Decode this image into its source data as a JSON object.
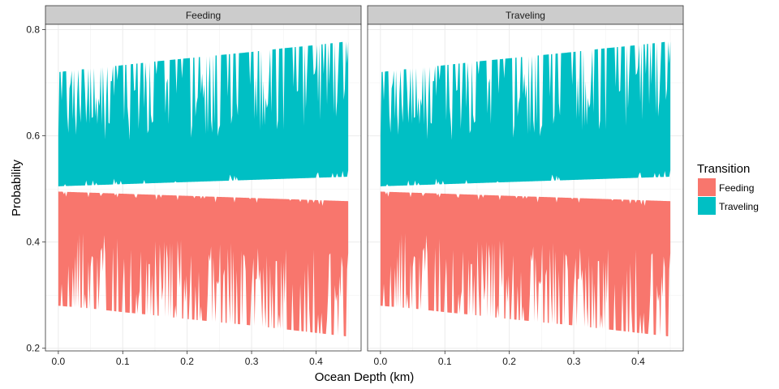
{
  "chart_data": {
    "type": "area",
    "facets": [
      "Feeding",
      "Traveling"
    ],
    "xlabel": "Ocean Depth (km)",
    "ylabel": "Probability",
    "xlim": [
      -0.02,
      0.47
    ],
    "ylim": [
      0.195,
      0.81
    ],
    "x_ticks": [
      0.0,
      0.1,
      0.2,
      0.3,
      0.4
    ],
    "x_tick_labels": [
      "0.0",
      "0.1",
      "0.2",
      "0.3",
      "0.4"
    ],
    "y_ticks": [
      0.2,
      0.4,
      0.6,
      0.8
    ],
    "y_tick_labels": [
      "0.2",
      "0.4",
      "0.6",
      "0.8"
    ],
    "grid": true,
    "legend": {
      "title": "Transition",
      "position": "right"
    },
    "series": [
      {
        "name": "Feeding",
        "color": "#F8766D",
        "x": [
          0.0,
          0.05,
          0.1,
          0.15,
          0.2,
          0.25,
          0.3,
          0.35,
          0.4,
          0.45
        ],
        "ymin": [
          0.28,
          0.275,
          0.268,
          0.262,
          0.255,
          0.249,
          0.243,
          0.236,
          0.229,
          0.222
        ],
        "ymax": [
          0.495,
          0.493,
          0.491,
          0.489,
          0.487,
          0.485,
          0.483,
          0.481,
          0.479,
          0.477
        ]
      },
      {
        "name": "Traveling",
        "color": "#00BFC4",
        "x": [
          0.0,
          0.05,
          0.1,
          0.15,
          0.2,
          0.25,
          0.3,
          0.35,
          0.4,
          0.45
        ],
        "ymin": [
          0.505,
          0.507,
          0.509,
          0.511,
          0.513,
          0.515,
          0.517,
          0.519,
          0.521,
          0.523
        ],
        "ymax": [
          0.72,
          0.727,
          0.733,
          0.74,
          0.746,
          0.752,
          0.758,
          0.765,
          0.771,
          0.778
        ]
      }
    ]
  }
}
